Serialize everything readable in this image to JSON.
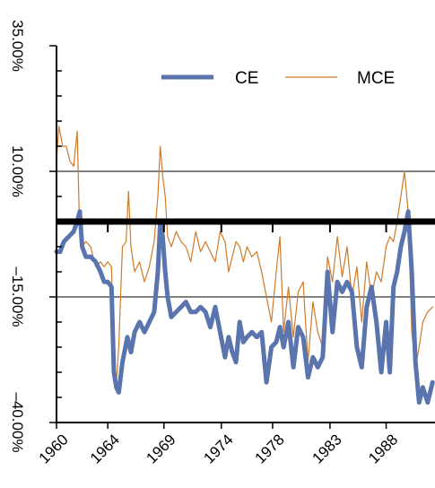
{
  "chart_data": {
    "type": "line",
    "title": "",
    "xlabel": "",
    "ylabel": "",
    "x_ticks": [
      "1960",
      "1964",
      "1969",
      "1974",
      "1978",
      "1983",
      "1988"
    ],
    "y_ticks": [
      "35.00%",
      "10.00%",
      "–15.00%",
      "–40.00%"
    ],
    "xlim": [
      1960,
      1991
    ],
    "ylim": [
      -40,
      35
    ],
    "y_tick_values": [
      35,
      10,
      -15,
      -40
    ],
    "x_tick_values": [
      1960,
      1964.2,
      1968.8,
      1973.5,
      1977.7,
      1982.4,
      1987.0
    ],
    "reference_line_y": 0,
    "grid": "horizontal lines at 10% and -15%",
    "legend_position": "top-right",
    "series": [
      {
        "name": "CE",
        "color": "#5a74ae",
        "x": [
          1960.0,
          1960.3,
          1960.6,
          1961.0,
          1961.4,
          1961.7,
          1961.9,
          1962.1,
          1962.4,
          1962.8,
          1963.2,
          1963.6,
          1963.9,
          1964.2,
          1964.5,
          1964.7,
          1964.9,
          1965.1,
          1965.4,
          1965.8,
          1966.1,
          1966.4,
          1966.8,
          1967.2,
          1967.6,
          1968.0,
          1968.3,
          1968.5,
          1968.7,
          1968.9,
          1969.1,
          1969.4,
          1969.8,
          1970.2,
          1970.6,
          1971.0,
          1971.4,
          1971.8,
          1972.2,
          1972.6,
          1973.0,
          1973.4,
          1973.8,
          1974.1,
          1974.4,
          1974.7,
          1975.0,
          1975.3,
          1975.6,
          1976.0,
          1976.4,
          1976.8,
          1977.2,
          1977.6,
          1978.0,
          1978.3,
          1978.6,
          1979.0,
          1979.4,
          1979.8,
          1980.2,
          1980.6,
          1981.0,
          1981.4,
          1981.8,
          1982.2,
          1982.6,
          1983.0,
          1983.4,
          1983.8,
          1984.2,
          1984.6,
          1985.0,
          1985.4,
          1985.8,
          1986.2,
          1986.6,
          1987.0,
          1987.3,
          1987.6,
          1987.9,
          1988.2,
          1988.5,
          1988.8,
          1989.1,
          1989.4,
          1989.7,
          1990.0,
          1990.4,
          1990.8
        ],
        "y": [
          -6,
          -6,
          -4,
          -3,
          -2,
          0,
          2,
          -5,
          -7,
          -7,
          -8,
          -10,
          -12,
          -12,
          -13,
          -30,
          -33,
          -34,
          -28,
          -23,
          -26,
          -22,
          -20,
          -22,
          -20,
          -18,
          -10,
          0,
          -3,
          -10,
          -15,
          -19,
          -18,
          -17,
          -16,
          -18,
          -18,
          -17,
          -18,
          -21,
          -17,
          -22,
          -27,
          -23,
          -26,
          -28,
          -20,
          -24,
          -23,
          -22,
          -23,
          -22,
          -32,
          -25,
          -24,
          -21,
          -25,
          -20,
          -29,
          -21,
          -23,
          -31,
          -27,
          -29,
          -27,
          -10,
          -22,
          -12,
          -14,
          -12,
          -14,
          -25,
          -29,
          -17,
          -13,
          -20,
          -30,
          -20,
          -30,
          -13,
          -10,
          -5,
          -2,
          2,
          -10,
          -28,
          -36,
          -33,
          -36,
          -32
        ]
      },
      {
        "name": "MCE",
        "color": "#d07a2a",
        "x": [
          1960.0,
          1960.2,
          1960.5,
          1960.8,
          1961.1,
          1961.4,
          1961.7,
          1961.9,
          1962.1,
          1962.4,
          1962.8,
          1963.2,
          1963.6,
          1963.9,
          1964.2,
          1964.5,
          1964.7,
          1964.9,
          1965.1,
          1965.4,
          1965.7,
          1965.9,
          1966.1,
          1966.4,
          1966.8,
          1967.2,
          1967.6,
          1968.0,
          1968.3,
          1968.5,
          1968.7,
          1968.9,
          1969.1,
          1969.4,
          1969.8,
          1970.2,
          1970.6,
          1971.0,
          1971.4,
          1971.8,
          1972.2,
          1972.6,
          1973.0,
          1973.4,
          1973.8,
          1974.1,
          1974.4,
          1974.7,
          1975.0,
          1975.3,
          1975.6,
          1976.0,
          1976.4,
          1976.8,
          1977.2,
          1977.6,
          1978.0,
          1978.3,
          1978.6,
          1979.0,
          1979.4,
          1979.8,
          1980.2,
          1980.6,
          1981.0,
          1981.4,
          1981.8,
          1982.2,
          1982.6,
          1983.0,
          1983.4,
          1983.8,
          1984.2,
          1984.6,
          1985.0,
          1985.4,
          1985.8,
          1986.2,
          1986.6,
          1987.0,
          1987.3,
          1987.6,
          1987.9,
          1988.2,
          1988.5,
          1988.8,
          1989.1,
          1989.4,
          1989.7,
          1990.0,
          1990.4,
          1990.8
        ],
        "y": [
          12,
          19,
          15,
          15,
          12,
          11,
          18,
          -3,
          -5,
          -4,
          -5,
          -9,
          -8,
          -9,
          -8,
          -9,
          -30,
          -32,
          -25,
          -5,
          -4,
          6,
          -5,
          -10,
          -8,
          -12,
          -9,
          -4,
          5,
          15,
          9,
          5,
          -3,
          -5,
          -2,
          -4,
          -5,
          -8,
          -2,
          -6,
          -4,
          -6,
          -8,
          -2,
          -4,
          -10,
          -7,
          -4,
          -5,
          -8,
          -5,
          -7,
          -6,
          -10,
          -15,
          -20,
          -10,
          -3,
          -22,
          -13,
          -23,
          -14,
          -12,
          -28,
          -16,
          -22,
          -25,
          -7,
          -12,
          -3,
          -11,
          -5,
          -15,
          -9,
          -20,
          -8,
          -15,
          -10,
          -12,
          -5,
          -3,
          -4,
          0,
          5,
          10,
          2,
          -22,
          -29,
          -25,
          -20,
          -18,
          -17
        ]
      }
    ]
  }
}
